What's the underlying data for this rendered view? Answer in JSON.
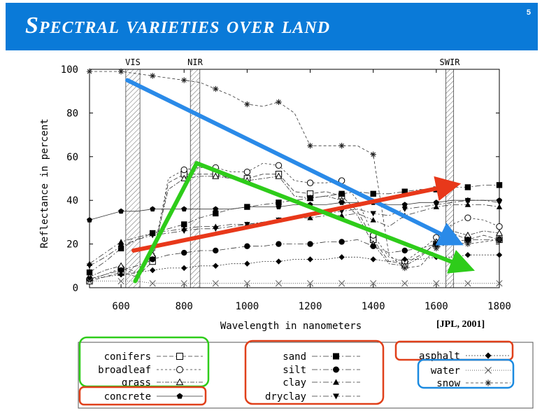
{
  "slide": {
    "title": "Spectral varieties over land",
    "page_number": "5",
    "citation": "[JPL, 2001]",
    "banner_color": "#0a7ad8"
  },
  "chart_data": {
    "type": "line",
    "xlabel": "Wavelength in nanometers",
    "ylabel": "Reflectance in percent",
    "xlim": [
      500,
      1800
    ],
    "ylim": [
      0,
      100
    ],
    "xticks": [
      600,
      800,
      1000,
      1200,
      1400,
      1600,
      1800
    ],
    "yticks": [
      0,
      20,
      40,
      60,
      80,
      100
    ],
    "bands": [
      {
        "label": "VIS",
        "range": [
          615,
          660
        ]
      },
      {
        "label": "NIR",
        "range": [
          820,
          850
        ]
      },
      {
        "label": "SWIR",
        "range": [
          1630,
          1655
        ]
      }
    ],
    "legend_groups": [
      {
        "series": [
          "conifers",
          "broadleaf",
          "grass"
        ],
        "box_color": "#2ecc1a"
      },
      {
        "series": [
          "concrete"
        ],
        "box_color": "#e0401a"
      },
      {
        "series": [
          "sand",
          "silt",
          "clay",
          "dryclay"
        ],
        "box_color": "#e0401a"
      },
      {
        "series": [
          "asphalt"
        ],
        "box_color": "#e0401a"
      },
      {
        "series": [
          "water",
          "snow"
        ],
        "box_color": "#1a8ae0"
      }
    ],
    "arrows": [
      {
        "color": "#2a8ae8",
        "from": [
          620,
          95
        ],
        "to": [
          1665,
          21
        ]
      },
      {
        "color": "#e8381a",
        "from": [
          640,
          17
        ],
        "to": [
          1655,
          47
        ]
      },
      {
        "color": "#2ecc1a",
        "from": [
          645,
          3
        ],
        "to": [
          840,
          57
        ]
      },
      {
        "color": "#2ecc1a",
        "from": [
          840,
          57
        ],
        "to": [
          1700,
          9
        ]
      }
    ],
    "series": [
      {
        "name": "conifers",
        "marker": "square-open",
        "dash": "6 3",
        "x": [
          500,
          550,
          600,
          650,
          700,
          750,
          800,
          850,
          900,
          950,
          1000,
          1050,
          1100,
          1150,
          1200,
          1250,
          1300,
          1350,
          1400,
          1450,
          1500,
          1550,
          1600,
          1650,
          1700,
          1750,
          1800
        ],
        "y": [
          3,
          5,
          7,
          5,
          12,
          48,
          52,
          52,
          52,
          50,
          50,
          52,
          52,
          44,
          43,
          44,
          42,
          35,
          22,
          12,
          11,
          15,
          20,
          25,
          22,
          24,
          22
        ]
      },
      {
        "name": "broadleaf",
        "marker": "circle-open",
        "dash": "3 3",
        "x": [
          500,
          550,
          600,
          650,
          700,
          750,
          800,
          850,
          900,
          950,
          1000,
          1050,
          1100,
          1150,
          1200,
          1250,
          1300,
          1350,
          1400,
          1450,
          1500,
          1550,
          1600,
          1650,
          1700,
          1750,
          1800
        ],
        "y": [
          4,
          6,
          9,
          6,
          14,
          50,
          54,
          55,
          55,
          53,
          53,
          57,
          56,
          49,
          48,
          48,
          49,
          40,
          24,
          14,
          12,
          17,
          23,
          29,
          32,
          31,
          28
        ]
      },
      {
        "name": "grass",
        "marker": "triangle-open",
        "dash": "6 2 2 2",
        "x": [
          500,
          550,
          600,
          650,
          700,
          750,
          800,
          850,
          900,
          950,
          1000,
          1050,
          1100,
          1150,
          1200,
          1250,
          1300,
          1350,
          1400,
          1450,
          1500,
          1550,
          1600,
          1650,
          1700,
          1750,
          1800
        ],
        "y": [
          5,
          8,
          10,
          7,
          15,
          45,
          50,
          51,
          51,
          50,
          49,
          50,
          51,
          42,
          41,
          42,
          40,
          33,
          20,
          11,
          10,
          14,
          21,
          26,
          24,
          26,
          25
        ]
      },
      {
        "name": "concrete",
        "marker": "pentagon-filled",
        "dash": "",
        "x": [
          500,
          550,
          600,
          650,
          700,
          750,
          800,
          850,
          900,
          950,
          1000,
          1050,
          1100,
          1150,
          1200,
          1250,
          1300,
          1350,
          1400,
          1450,
          1500,
          1550,
          1600,
          1650,
          1700,
          1750,
          1800
        ],
        "y": [
          31,
          33,
          35,
          35,
          36,
          36,
          36,
          36,
          36,
          36,
          37,
          37,
          37,
          38,
          38,
          38,
          39,
          39,
          39,
          38,
          38,
          39,
          39,
          40,
          40,
          40,
          40
        ]
      },
      {
        "name": "sand",
        "marker": "square-filled",
        "dash": "8 3 2 3",
        "x": [
          500,
          550,
          600,
          650,
          700,
          750,
          800,
          850,
          900,
          950,
          1000,
          1050,
          1100,
          1150,
          1200,
          1250,
          1300,
          1350,
          1400,
          1450,
          1500,
          1550,
          1600,
          1650,
          1700,
          1750,
          1800
        ],
        "y": [
          7,
          12,
          18,
          22,
          25,
          27,
          29,
          32,
          34,
          36,
          37,
          38,
          39,
          40,
          41,
          42,
          43,
          44,
          43,
          43,
          44,
          45,
          45,
          46,
          46,
          47,
          47
        ]
      },
      {
        "name": "silt",
        "marker": "circle-filled",
        "dash": "8 3 2 3",
        "x": [
          500,
          550,
          600,
          650,
          700,
          750,
          800,
          850,
          900,
          950,
          1000,
          1050,
          1100,
          1150,
          1200,
          1250,
          1300,
          1350,
          1400,
          1450,
          1500,
          1550,
          1600,
          1650,
          1700,
          1750,
          1800
        ],
        "y": [
          4,
          6,
          8,
          10,
          13,
          15,
          16,
          17,
          17,
          18,
          19,
          19,
          20,
          20,
          20,
          21,
          21,
          22,
          19,
          16,
          17,
          18,
          20,
          21,
          22,
          22,
          22
        ]
      },
      {
        "name": "clay",
        "marker": "triangle-filled",
        "dash": "8 3 2 3",
        "x": [
          500,
          550,
          600,
          650,
          700,
          750,
          800,
          850,
          900,
          950,
          1000,
          1050,
          1100,
          1150,
          1200,
          1250,
          1300,
          1350,
          1400,
          1450,
          1500,
          1550,
          1600,
          1650,
          1700,
          1750,
          1800
        ],
        "y": [
          11,
          16,
          21,
          23,
          25,
          26,
          27,
          28,
          28,
          29,
          29,
          30,
          31,
          32,
          32,
          33,
          33,
          34,
          31,
          28,
          33,
          35,
          37,
          38,
          38,
          38,
          37
        ]
      },
      {
        "name": "dryclay",
        "marker": "triangledown-filled",
        "dash": "8 3 2 3",
        "x": [
          500,
          550,
          600,
          650,
          700,
          750,
          800,
          850,
          900,
          950,
          1000,
          1050,
          1100,
          1150,
          1200,
          1250,
          1300,
          1350,
          1400,
          1450,
          1500,
          1550,
          1600,
          1650,
          1700,
          1750,
          1800
        ],
        "y": [
          10,
          14,
          19,
          22,
          24,
          25,
          26,
          27,
          27,
          28,
          29,
          30,
          31,
          32,
          33,
          34,
          35,
          36,
          34,
          33,
          36,
          37,
          38,
          39,
          40,
          40,
          39
        ]
      },
      {
        "name": "asphalt",
        "marker": "diamond-filled",
        "dash": "2 2",
        "x": [
          500,
          550,
          600,
          650,
          700,
          750,
          800,
          850,
          900,
          950,
          1000,
          1050,
          1100,
          1150,
          1200,
          1250,
          1300,
          1350,
          1400,
          1450,
          1500,
          1550,
          1600,
          1650,
          1700,
          1750,
          1800
        ],
        "y": [
          4,
          5,
          6,
          7,
          8,
          9,
          9,
          10,
          10,
          11,
          11,
          12,
          12,
          13,
          13,
          13,
          14,
          14,
          13,
          12,
          13,
          13,
          14,
          14,
          15,
          15,
          15
        ]
      },
      {
        "name": "water",
        "marker": "x",
        "dash": "1 2",
        "x": [
          500,
          550,
          600,
          650,
          700,
          750,
          800,
          850,
          900,
          950,
          1000,
          1050,
          1100,
          1150,
          1200,
          1250,
          1300,
          1350,
          1400,
          1450,
          1500,
          1550,
          1600,
          1650,
          1700,
          1750,
          1800
        ],
        "y": [
          3,
          3,
          3,
          3,
          2,
          2,
          2,
          2,
          2,
          2,
          2,
          2,
          2,
          2,
          2,
          2,
          2,
          2,
          2,
          2,
          2,
          2,
          2,
          2,
          2,
          2,
          2
        ]
      },
      {
        "name": "snow",
        "marker": "asterisk",
        "dash": "4 3",
        "x": [
          500,
          550,
          600,
          650,
          700,
          750,
          800,
          850,
          900,
          950,
          1000,
          1050,
          1100,
          1150,
          1200,
          1250,
          1300,
          1350,
          1400,
          1450,
          1500,
          1550,
          1600,
          1650,
          1700,
          1750,
          1800
        ],
        "y": [
          99,
          99,
          99,
          98,
          97,
          96,
          95,
          94,
          91,
          88,
          84,
          83,
          85,
          80,
          65,
          65,
          65,
          65,
          61,
          15,
          9,
          10,
          18,
          21,
          20,
          21,
          22
        ]
      }
    ]
  }
}
